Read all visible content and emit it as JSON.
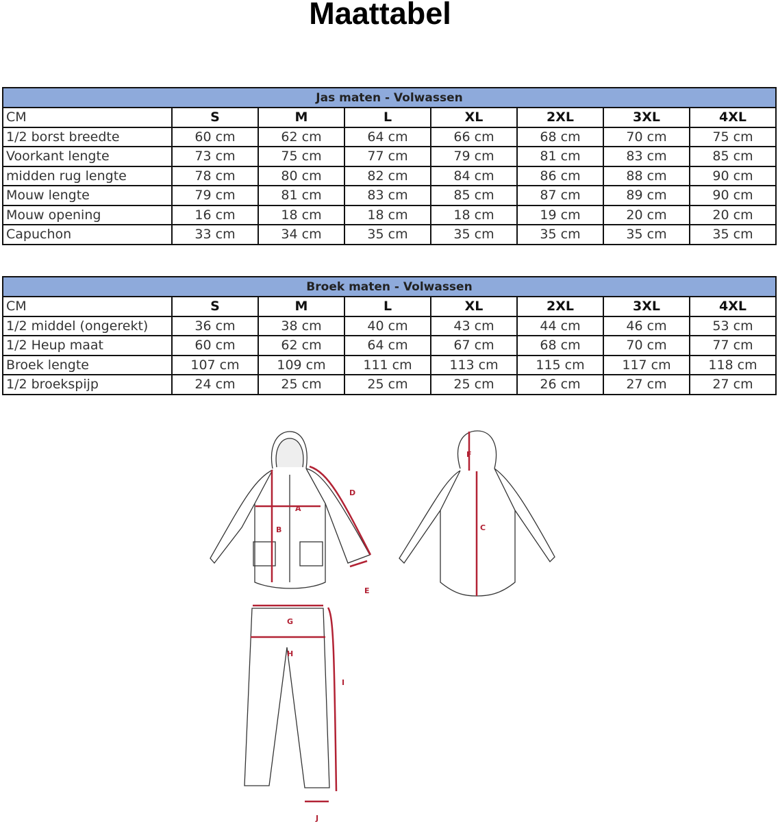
{
  "title": "Maattabel",
  "jacket_table": {
    "title": "Jas maten - Volwassen",
    "header": [
      "CM",
      "S",
      "M",
      "L",
      "XL",
      "2XL",
      "3XL",
      "4XL"
    ],
    "rows": [
      [
        "1/2 borst breedte",
        "60 cm",
        "62 cm",
        "64 cm",
        "66 cm",
        "68 cm",
        "70 cm",
        "75 cm"
      ],
      [
        "Voorkant lengte",
        "73 cm",
        "75 cm",
        "77 cm",
        "79 cm",
        "81 cm",
        "83 cm",
        "85 cm"
      ],
      [
        "midden rug lengte",
        "78 cm",
        "80 cm",
        "82 cm",
        "84 cm",
        "86 cm",
        "88 cm",
        "90 cm"
      ],
      [
        "Mouw lengte",
        "79 cm",
        "81 cm",
        "83 cm",
        "85 cm",
        "87 cm",
        "89 cm",
        "90 cm"
      ],
      [
        "Mouw opening",
        "16 cm",
        "18 cm",
        "18 cm",
        "18 cm",
        "19 cm",
        "20 cm",
        "20 cm"
      ],
      [
        "Capuchon",
        "33 cm",
        "34 cm",
        "35 cm",
        "35 cm",
        "35 cm",
        "35 cm",
        "35 cm"
      ]
    ]
  },
  "pants_table": {
    "title": "Broek maten - Volwassen",
    "header": [
      "CM",
      "S",
      "M",
      "L",
      "XL",
      "2XL",
      "3XL",
      "4XL"
    ],
    "rows": [
      [
        "1/2 middel (ongerekt)",
        "36 cm",
        "38 cm",
        "40 cm",
        "43 cm",
        "44 cm",
        "46 cm",
        "53 cm"
      ],
      [
        "1/2 Heup maat",
        "60 cm",
        "62 cm",
        "64 cm",
        "67 cm",
        "68 cm",
        "70 cm",
        "77 cm"
      ],
      [
        "Broek lengte",
        "107 cm",
        "109 cm",
        "111 cm",
        "113 cm",
        "115 cm",
        "117 cm",
        "118 cm"
      ],
      [
        "1/2 broekspijp",
        "24 cm",
        "25 cm",
        "25 cm",
        "25 cm",
        "26 cm",
        "27 cm",
        "27 cm"
      ]
    ]
  },
  "diagram": {
    "labels": {
      "A": "A",
      "B": "B",
      "C": "C",
      "D": "D",
      "E": "E",
      "F": "F",
      "G": "G",
      "H": "H",
      "I": "I",
      "J": "J"
    },
    "colors": {
      "measure_line": "#b22234",
      "header_fill": "#8eaadb"
    }
  }
}
